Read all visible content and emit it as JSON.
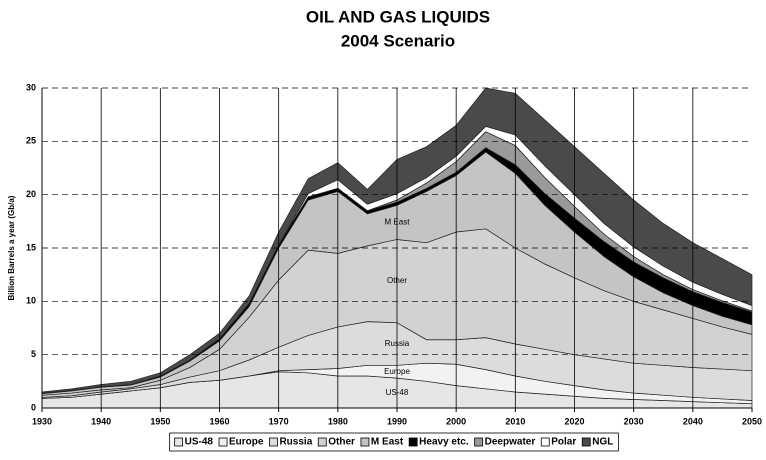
{
  "chart_data": {
    "type": "stacked_area",
    "title": "OIL AND GAS LIQUIDS",
    "subtitle": "2004 Scenario",
    "y_label": "Billion Barrels a year (Gb/a)",
    "x": [
      1930,
      1935,
      1940,
      1945,
      1950,
      1955,
      1960,
      1965,
      1970,
      1975,
      1980,
      1985,
      1990,
      1995,
      2000,
      2005,
      2010,
      2015,
      2020,
      2025,
      2030,
      2035,
      2040,
      2045,
      2050
    ],
    "xlim": [
      1930,
      2050
    ],
    "xticks": [
      1930,
      1940,
      1950,
      1960,
      1970,
      1980,
      1990,
      2000,
      2010,
      2020,
      2030,
      2040,
      2050
    ],
    "ylim": [
      0,
      30
    ],
    "yticks": [
      0,
      5,
      10,
      15,
      20,
      25,
      30
    ],
    "grid": true,
    "legend": "bottom",
    "series": [
      {
        "name": "US-48",
        "color": "#e6e6e6",
        "values": [
          0.9,
          1.0,
          1.3,
          1.6,
          1.9,
          2.4,
          2.6,
          3.0,
          3.4,
          3.3,
          3.0,
          3.0,
          2.8,
          2.5,
          2.1,
          1.8,
          1.5,
          1.3,
          1.1,
          0.9,
          0.8,
          0.7,
          0.6,
          0.5,
          0.4
        ]
      },
      {
        "name": "Europe",
        "color": "#f2f2f2",
        "values": [
          0,
          0,
          0,
          0,
          0,
          0,
          0,
          0,
          0.1,
          0.3,
          0.7,
          1.0,
          1.2,
          1.7,
          2.0,
          1.8,
          1.5,
          1.2,
          1.0,
          0.8,
          0.6,
          0.5,
          0.4,
          0.35,
          0.3
        ]
      },
      {
        "name": "Russia",
        "color": "#dcdcdc",
        "values": [
          0.1,
          0.15,
          0.2,
          0.2,
          0.3,
          0.5,
          0.9,
          1.5,
          2.2,
          3.2,
          3.9,
          4.1,
          4.0,
          2.2,
          2.3,
          3.0,
          3.0,
          3.0,
          2.9,
          2.9,
          2.8,
          2.8,
          2.8,
          2.8,
          2.8
        ]
      },
      {
        "name": "Other",
        "color": "#d2d2d2",
        "values": [
          0.2,
          0.25,
          0.2,
          0.1,
          0.4,
          0.9,
          2.0,
          4.0,
          6.3,
          8.0,
          6.9,
          7.1,
          7.8,
          9.1,
          10.1,
          10.2,
          9.0,
          8.0,
          7.2,
          6.4,
          5.8,
          5.2,
          4.6,
          3.95,
          3.4
        ]
      },
      {
        "name": "M East",
        "color": "#c4c4c4",
        "values": [
          0.15,
          0.2,
          0.25,
          0.25,
          0.3,
          0.6,
          0.8,
          1.0,
          3.0,
          4.7,
          5.8,
          3.0,
          3.2,
          4.8,
          5.3,
          7.2,
          7.0,
          5.5,
          4.3,
          3.2,
          2.3,
          1.6,
          1.2,
          1.0,
          0.9
        ]
      },
      {
        "name": "Heavy etc.",
        "color": "#000000",
        "values": [
          0.05,
          0.05,
          0.05,
          0.05,
          0.1,
          0.1,
          0.2,
          0.3,
          0.3,
          0.3,
          0.3,
          0.3,
          0.3,
          0.3,
          0.3,
          0.4,
          0.8,
          1.1,
          1.3,
          1.4,
          1.4,
          1.4,
          1.3,
          1.3,
          1.2
        ]
      },
      {
        "name": "Deepwater",
        "color": "#9a9a9a",
        "values": [
          0,
          0,
          0,
          0,
          0,
          0,
          0,
          0,
          0,
          0,
          0,
          0,
          0.2,
          0.5,
          1.0,
          1.5,
          1.8,
          1.5,
          1.1,
          0.7,
          0.5,
          0.3,
          0.2,
          0.15,
          0.1
        ]
      },
      {
        "name": "Polar",
        "color": "#ffffff",
        "values": [
          0,
          0,
          0,
          0,
          0,
          0,
          0,
          0,
          0,
          0.3,
          0.8,
          0.6,
          0.6,
          0.5,
          0.5,
          0.5,
          1.0,
          1.1,
          1.1,
          1.0,
          0.9,
          0.8,
          0.7,
          0.6,
          0.5
        ]
      },
      {
        "name": "NGL",
        "color": "#4a4a4a",
        "values": [
          0.1,
          0.15,
          0.2,
          0.3,
          0.3,
          0.5,
          0.5,
          0.7,
          1.2,
          1.4,
          1.6,
          1.4,
          3.2,
          2.9,
          2.9,
          3.6,
          3.9,
          4.3,
          4.5,
          4.7,
          4.4,
          4.0,
          3.7,
          3.35,
          2.9
        ]
      }
    ]
  }
}
